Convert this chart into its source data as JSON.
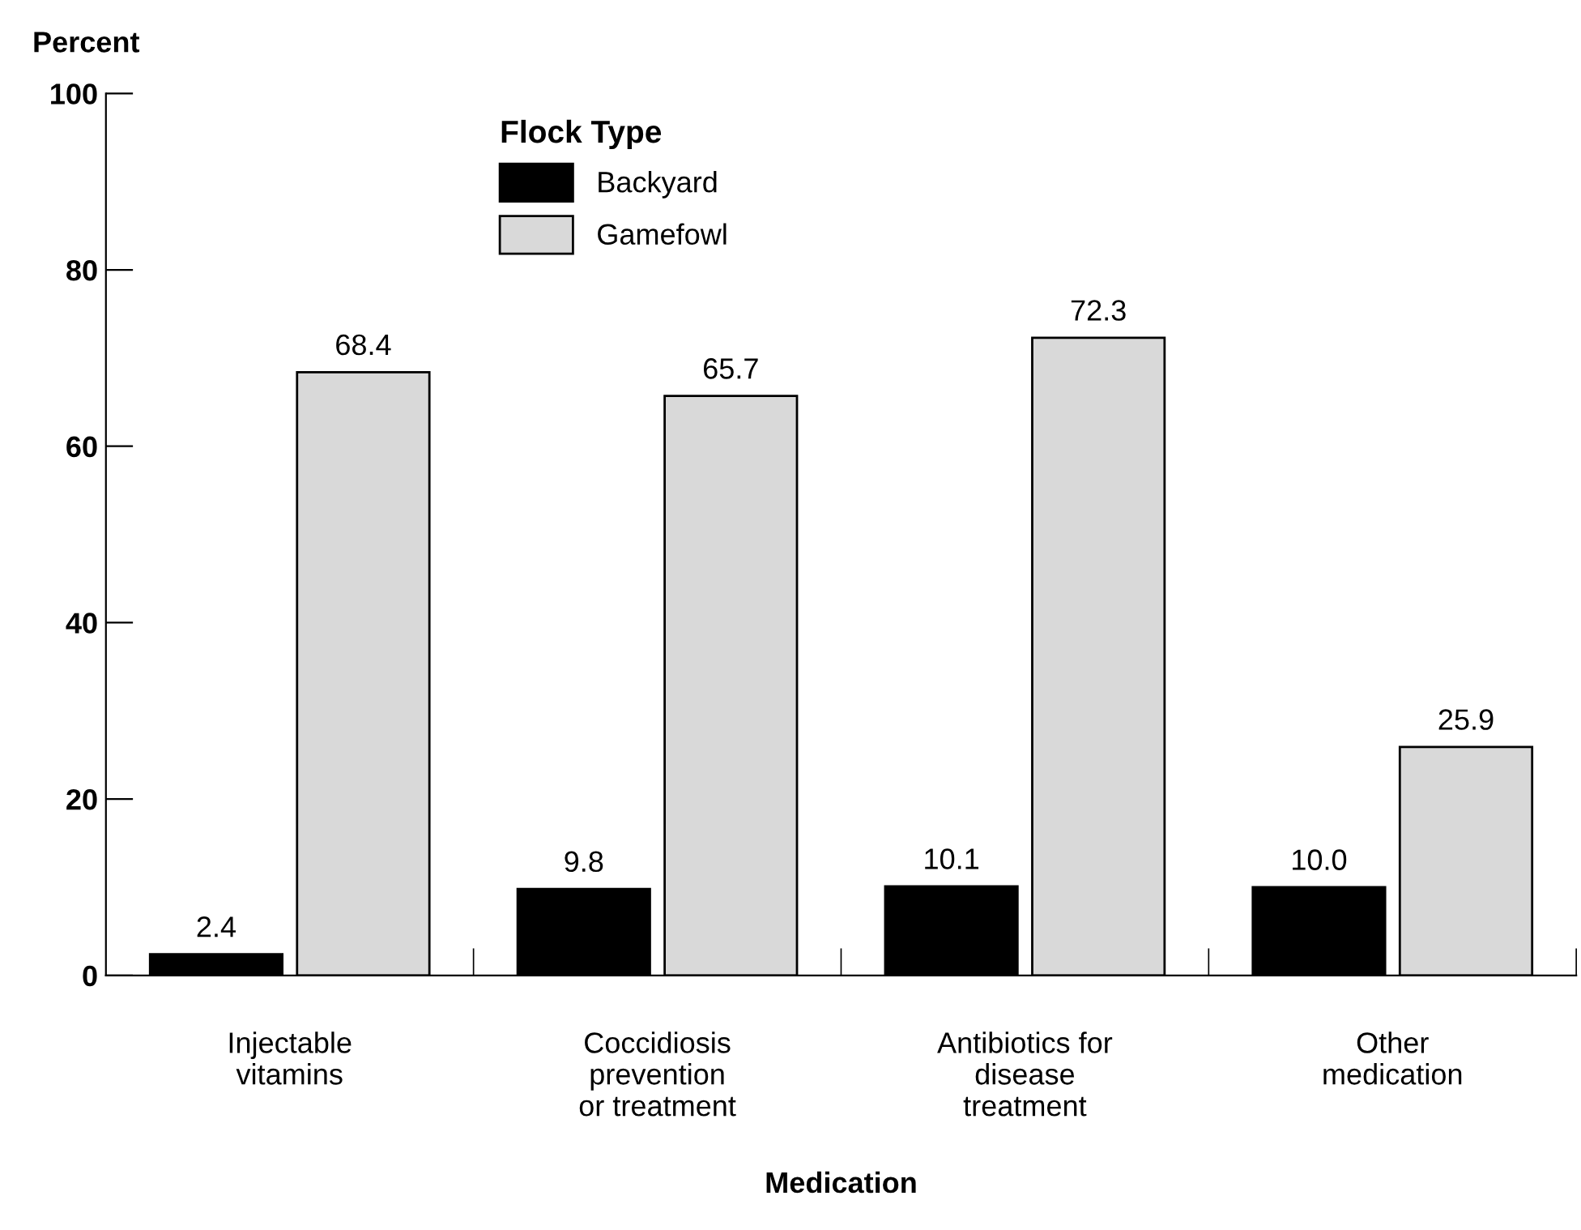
{
  "chart_data": {
    "type": "bar",
    "xlabel": "Medication",
    "ylabel": "Percent",
    "legend_title": "Flock Type",
    "categories": [
      "Injectable\nvitamins",
      "Coccidiosis\nprevention\nor treatment",
      "Antibiotics for\ndisease\ntreatment",
      "Other\nmedication"
    ],
    "series": [
      {
        "name": "Backyard",
        "color": "#000000",
        "values": [
          2.4,
          9.8,
          10.1,
          10.0
        ],
        "value_labels": [
          "2.4",
          "9.8",
          "10.1",
          "10.0"
        ]
      },
      {
        "name": "Gamefowl",
        "color": "#d9d9d9",
        "values": [
          68.4,
          65.7,
          72.3,
          25.9
        ],
        "value_labels": [
          "68.4",
          "65.7",
          "72.3",
          "25.9"
        ]
      }
    ],
    "ylim": [
      0,
      100
    ],
    "yticks": [
      0,
      20,
      40,
      60,
      80,
      100
    ],
    "legend": "top left",
    "grid": false
  }
}
